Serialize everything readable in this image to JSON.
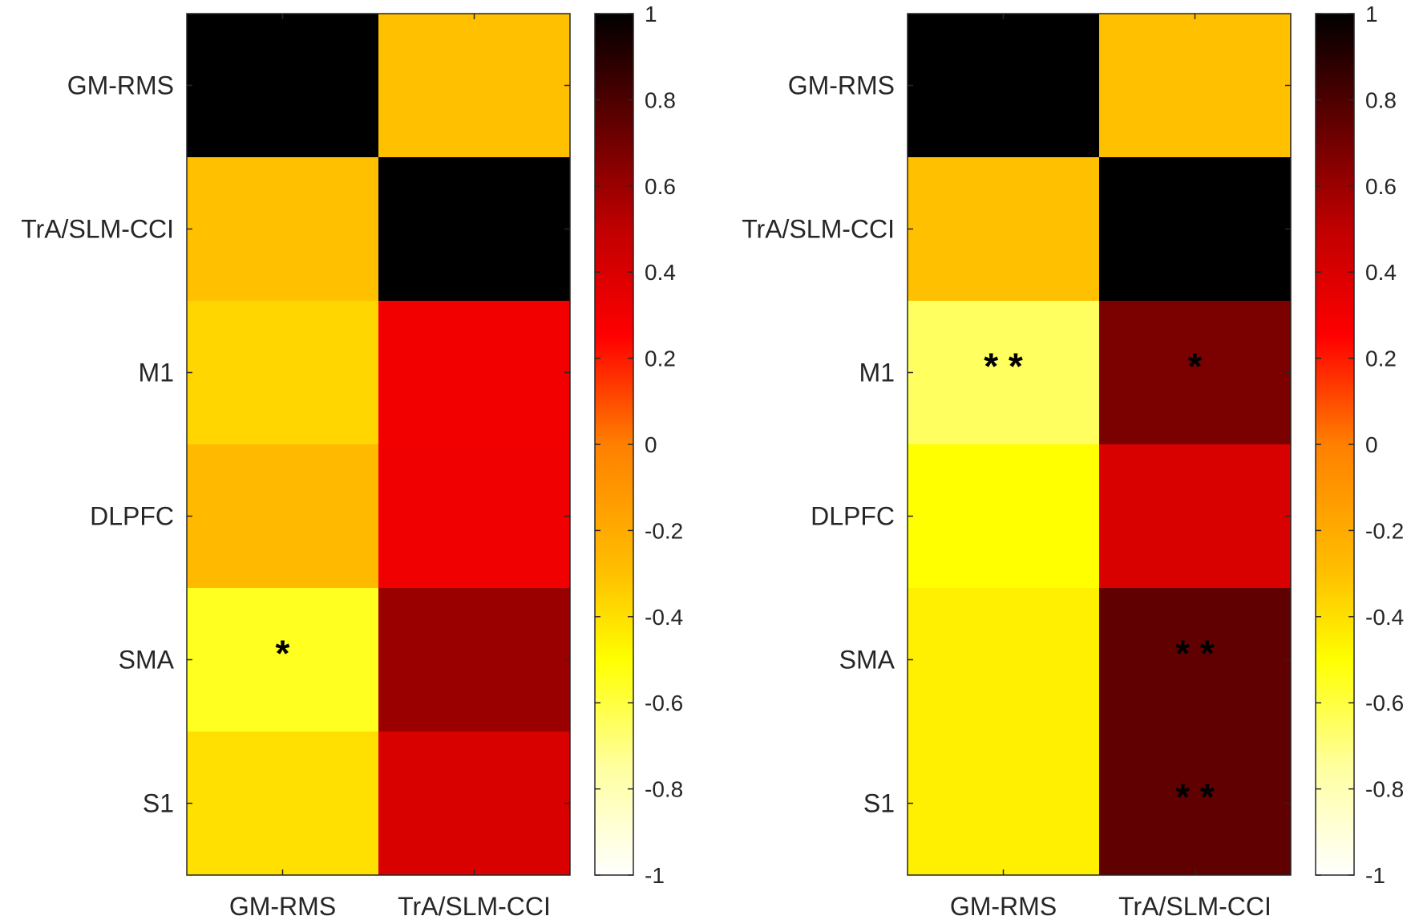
{
  "chart_data": [
    {
      "type": "heatmap",
      "panel": "left",
      "row_labels": [
        "GM-RMS",
        "TrA/SLM-CCI",
        "M1",
        "DLPFC",
        "SMA",
        "S1"
      ],
      "col_labels": [
        "GM-RMS",
        "TrA/SLM-CCI"
      ],
      "values": [
        [
          1.0,
          -0.3
        ],
        [
          -0.3,
          1.0
        ],
        [
          -0.37,
          0.3
        ],
        [
          -0.27,
          0.31
        ],
        [
          -0.55,
          0.6
        ],
        [
          -0.4,
          0.4
        ]
      ],
      "annotations": [
        [
          "",
          ""
        ],
        [
          "",
          ""
        ],
        [
          "",
          ""
        ],
        [
          "",
          ""
        ],
        [
          "*",
          ""
        ],
        [
          "",
          ""
        ]
      ],
      "colormap": "hot (reversed)",
      "clim": [
        -1,
        1
      ],
      "colorbar": {
        "ticks": [
          1,
          0.8,
          0.6,
          0.4,
          0.2,
          0,
          -0.2,
          -0.4,
          -0.6,
          -0.8,
          -1
        ],
        "tick_labels": [
          "1",
          "0.8",
          "0.6",
          "0.4",
          "0.2",
          "0",
          "-0.2",
          "-0.4",
          "-0.6",
          "-0.8",
          "-1"
        ]
      }
    },
    {
      "type": "heatmap",
      "panel": "right",
      "row_labels": [
        "GM-RMS",
        "TrA/SLM-CCI",
        "M1",
        "DLPFC",
        "SMA",
        "S1"
      ],
      "col_labels": [
        "GM-RMS",
        "TrA/SLM-CCI"
      ],
      "values": [
        [
          1.0,
          -0.3
        ],
        [
          -0.3,
          1.0
        ],
        [
          -0.65,
          0.68
        ],
        [
          -0.5,
          0.4
        ],
        [
          -0.45,
          0.75
        ],
        [
          -0.45,
          0.75
        ]
      ],
      "annotations": [
        [
          "",
          ""
        ],
        [
          "",
          ""
        ],
        [
          "* *",
          "*"
        ],
        [
          "",
          ""
        ],
        [
          "",
          "* *"
        ],
        [
          "",
          "* *"
        ]
      ],
      "colormap": "hot (reversed)",
      "clim": [
        -1,
        1
      ],
      "colorbar": {
        "ticks": [
          1,
          0.8,
          0.6,
          0.4,
          0.2,
          0,
          -0.2,
          -0.4,
          -0.6,
          -0.8,
          -1
        ],
        "tick_labels": [
          "1",
          "0.8",
          "0.6",
          "0.4",
          "0.2",
          "0",
          "-0.2",
          "-0.4",
          "-0.6",
          "-0.8",
          "-1"
        ]
      }
    }
  ]
}
